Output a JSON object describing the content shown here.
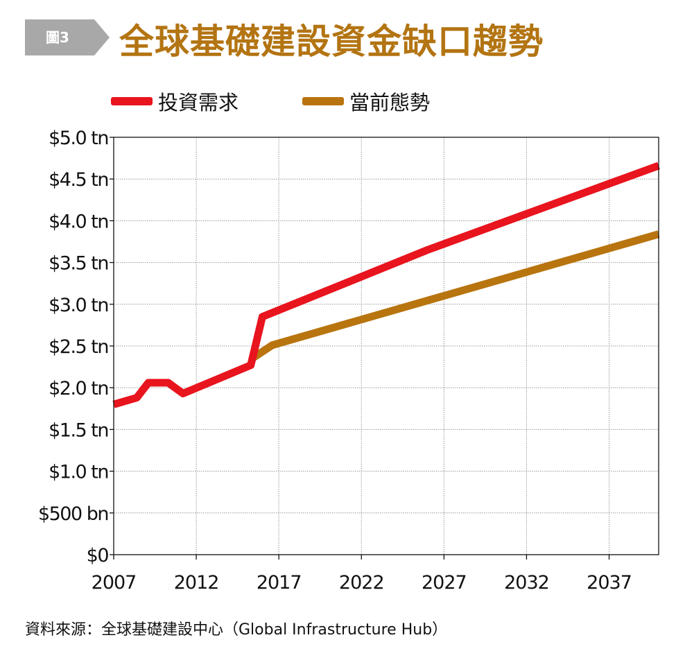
{
  "figure_badge": "圖3",
  "colors": {
    "badge_bg": "#a8a8a8",
    "title": "#b37412",
    "demand": "#e8141e",
    "trend": "#b8740e",
    "grid": "#9a9a9a",
    "axis": "#111111"
  },
  "source": "資料來源：全球基礎建設中心（Global Infrastructure Hub）",
  "chart_data": {
    "type": "line",
    "title": "全球基礎建設資金缺口趨勢",
    "xlabel": "",
    "ylabel": "",
    "xlim": [
      2007,
      2040
    ],
    "ylim": [
      0,
      5.0
    ],
    "x_ticks": [
      2007,
      2012,
      2017,
      2022,
      2027,
      2032,
      2037
    ],
    "x_tick_labels": [
      "2007",
      "2012",
      "2017",
      "2022",
      "2027",
      "2032",
      "2037"
    ],
    "y_ticks": [
      0,
      0.5,
      1.0,
      1.5,
      2.0,
      2.5,
      3.0,
      3.5,
      4.0,
      4.5,
      5.0
    ],
    "y_tick_labels": [
      "$0",
      "$500 bn",
      "$1.0 tn",
      "$1.5 tn",
      "$2.0 tn",
      "$2.5 tn",
      "$3.0 tn",
      "$3.5 tn",
      "$4.0 tn",
      "$4.5 tn",
      "$5.0 tn"
    ],
    "grid": true,
    "legend_position": "top",
    "series": [
      {
        "name": "投資需求",
        "color": "#e8141e",
        "x": [
          2007,
          2008.4,
          2009.1,
          2010.3,
          2011.2,
          2015.3,
          2016,
          2026,
          2040
        ],
        "y": [
          1.8,
          1.88,
          2.06,
          2.06,
          1.93,
          2.27,
          2.85,
          3.65,
          4.66
        ]
      },
      {
        "name": "當前態勢",
        "color": "#b8740e",
        "x": [
          2015.3,
          2016.6,
          2040
        ],
        "y": [
          2.34,
          2.51,
          3.84
        ]
      }
    ]
  }
}
